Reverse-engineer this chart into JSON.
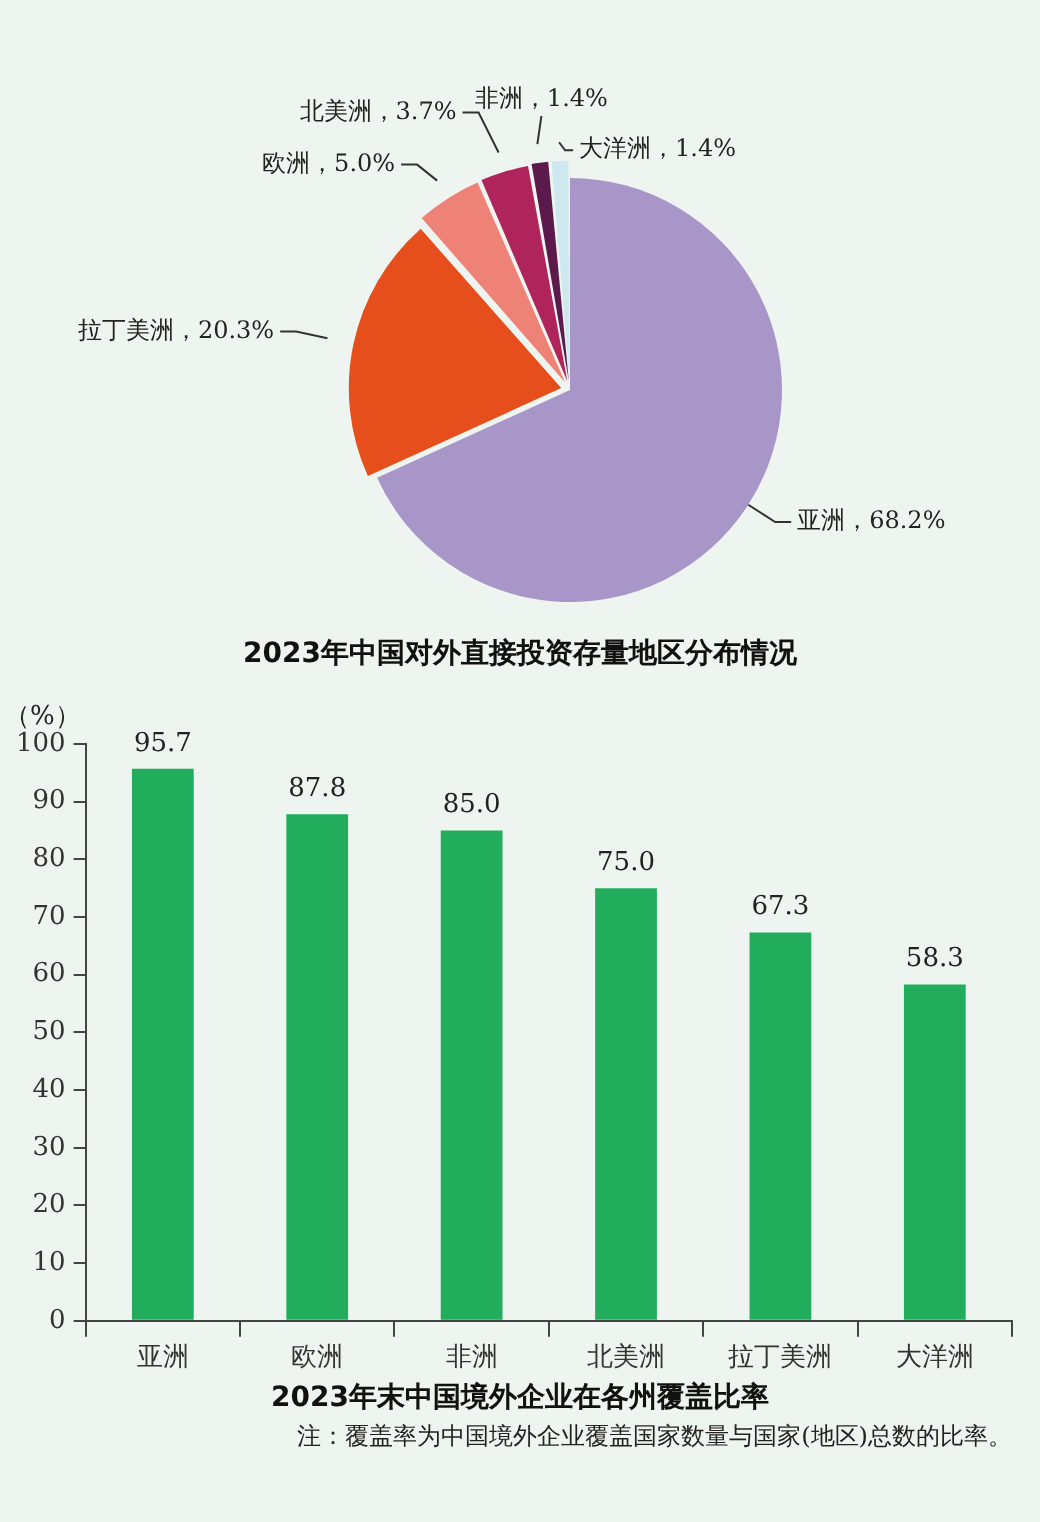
{
  "chart_data": [
    {
      "type": "pie",
      "title": "2023年中国对外直接投资存量地区分布情况",
      "categories": [
        "亚洲",
        "拉丁美洲",
        "欧洲",
        "北美洲",
        "非洲",
        "大洋洲"
      ],
      "values": [
        68.2,
        20.3,
        5.0,
        3.7,
        1.4,
        1.4
      ],
      "value_labels": [
        "68.2%",
        "20.3%",
        "5.0%",
        "3.7%",
        "1.4%",
        "1.4%"
      ],
      "colors": [
        "#a996c8",
        "#e64e1c",
        "#ee8276",
        "#b0245c",
        "#5c1a4c",
        "#cde8ee"
      ]
    },
    {
      "type": "bar",
      "title": "2023年末中国境外企业在各州覆盖比率",
      "ylabel": "（%）",
      "categories": [
        "亚洲",
        "欧洲",
        "非洲",
        "北美洲",
        "拉丁美洲",
        "大洋洲"
      ],
      "values": [
        95.7,
        87.8,
        85.0,
        75.0,
        67.3,
        58.3
      ],
      "color": "#21ad5c",
      "ylim": [
        0,
        100
      ],
      "yticks": [
        0,
        10,
        20,
        30,
        40,
        50,
        60,
        70,
        80,
        90,
        100
      ],
      "value_labels": [
        "95.7",
        "87.8",
        "85.0",
        "75.0",
        "67.3",
        "58.3"
      ],
      "grid": false,
      "annotations": [
        "注：覆盖率为中国境外企业覆盖国家数量与国家(地区)总数的比率。"
      ]
    }
  ]
}
